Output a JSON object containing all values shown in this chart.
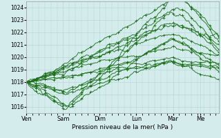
{
  "xlabel": "Pression niveau de la mer( hPa )",
  "ylim": [
    1015.5,
    1024.5
  ],
  "yticks": [
    1016,
    1017,
    1018,
    1019,
    1020,
    1021,
    1022,
    1023,
    1024
  ],
  "bg_color": "#d5ecec",
  "grid_color": "#b0d4d4",
  "line_color": "#1a6e1a",
  "x_day_labels": [
    "Ven",
    "Sam",
    "Dim",
    "Lun",
    "Mar",
    "Me"
  ],
  "x_day_positions": [
    0,
    48,
    96,
    144,
    192,
    228
  ],
  "total_hours": 252,
  "figsize": [
    3.2,
    2.0
  ],
  "dpi": 100
}
